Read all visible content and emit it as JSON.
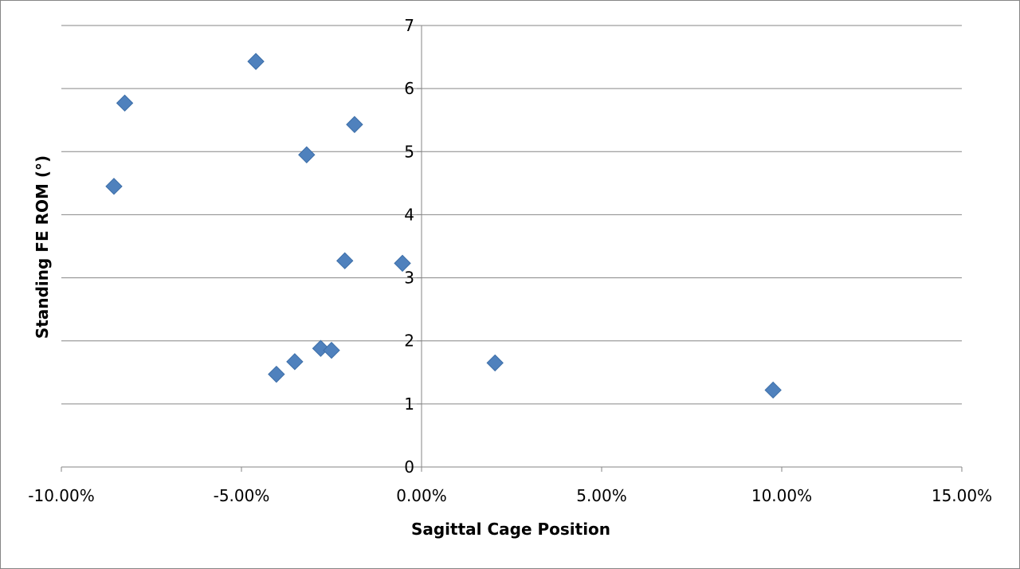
{
  "chart_data": {
    "type": "scatter",
    "title": "",
    "xlabel": "Sagittal Cage Position",
    "ylabel": "Standing FE ROM (°)",
    "xlim": [
      -0.1,
      0.15
    ],
    "ylim": [
      0,
      7
    ],
    "x_ticks": [
      -0.1,
      -0.05,
      0.0,
      0.05,
      0.1,
      0.15
    ],
    "x_tick_labels": [
      "-10.00%",
      "-5.00%",
      "0.00%",
      "5.00%",
      "10.00%",
      "15.00%"
    ],
    "y_ticks": [
      0,
      1,
      2,
      3,
      4,
      5,
      6,
      7
    ],
    "y_tick_labels": [
      "0",
      "1",
      "2",
      "3",
      "4",
      "5",
      "6",
      "7"
    ],
    "grid": "horizontal",
    "legend": "none",
    "marker": "diamond",
    "marker_color": "#4F81BD",
    "series": [
      {
        "points": [
          {
            "x": -0.0854,
            "y": 4.45
          },
          {
            "x": -0.0824,
            "y": 5.77
          },
          {
            "x": -0.046,
            "y": 6.43
          },
          {
            "x": -0.0403,
            "y": 1.47
          },
          {
            "x": -0.0352,
            "y": 1.67
          },
          {
            "x": -0.0319,
            "y": 4.95
          },
          {
            "x": -0.028,
            "y": 1.88
          },
          {
            "x": -0.025,
            "y": 1.85
          },
          {
            "x": -0.0213,
            "y": 3.27
          },
          {
            "x": -0.0186,
            "y": 5.43
          },
          {
            "x": -0.0053,
            "y": 3.23
          },
          {
            "x": 0.0204,
            "y": 1.65
          },
          {
            "x": 0.0976,
            "y": 1.22
          }
        ]
      }
    ]
  }
}
